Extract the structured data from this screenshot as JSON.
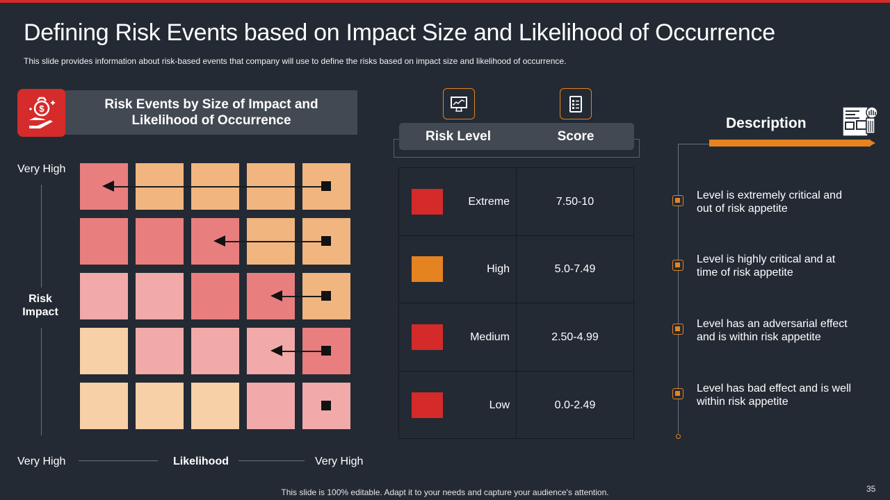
{
  "slide": {
    "title": "Defining Risk Events based on Impact Size and Likelihood of Occurrence",
    "subtitle": "This slide provides  information  about  risk-based  events  that  company  will  use to define  the  risks based  on  impact  size and  likelihood  of  occurrence.",
    "footer": "This slide is 100% editable. Adapt it to your needs and capture your audience's attention.",
    "page_number": "35"
  },
  "matrix": {
    "header": "Risk Events by Size of Impact and Likelihood of Occurrence",
    "icon": "money-bag-hand-icon",
    "y_axis_top": "Very High",
    "y_axis_label": "Risk Impact",
    "x_axis_left": "Very High",
    "x_axis_label": "Likelihood",
    "x_axis_right": "Very High",
    "colors": {
      "red": "#e97e7f",
      "pink": "#f1aaa9",
      "orange": "#f1b67f",
      "peach": "#f7d0a8"
    },
    "grid": [
      [
        "red",
        "orange",
        "orange",
        "orange",
        "orange"
      ],
      [
        "red",
        "red",
        "red",
        "orange",
        "orange"
      ],
      [
        "pink",
        "pink",
        "red",
        "red",
        "orange"
      ],
      [
        "peach",
        "pink",
        "pink",
        "pink",
        "red"
      ],
      [
        "peach",
        "peach",
        "peach",
        "pink",
        "pink"
      ]
    ]
  },
  "risk_table": {
    "icons": [
      "monitor-chart-icon",
      "checklist-icon"
    ],
    "header_level": "Risk Level",
    "header_score": "Score",
    "rows": [
      {
        "level": "Extreme",
        "score": "7.50-10",
        "color": "#d42a2a"
      },
      {
        "level": "High",
        "score": "5.0-7.49",
        "color": "#e58320"
      },
      {
        "level": "Medium",
        "score": "2.50-4.99",
        "color": "#d42a2a"
      },
      {
        "level": "Low",
        "score": "0.0-2.49",
        "color": "#d42a2a"
      }
    ]
  },
  "description": {
    "title": "Description",
    "icon": "document-presentation-icon",
    "items": [
      "Level is extremely  critical and out of risk appetite",
      "Level is highly critical and at time of risk appetite",
      "Level has an adversarial effect and is within risk appetite",
      "Level has bad effect and is well within risk appetite"
    ]
  }
}
